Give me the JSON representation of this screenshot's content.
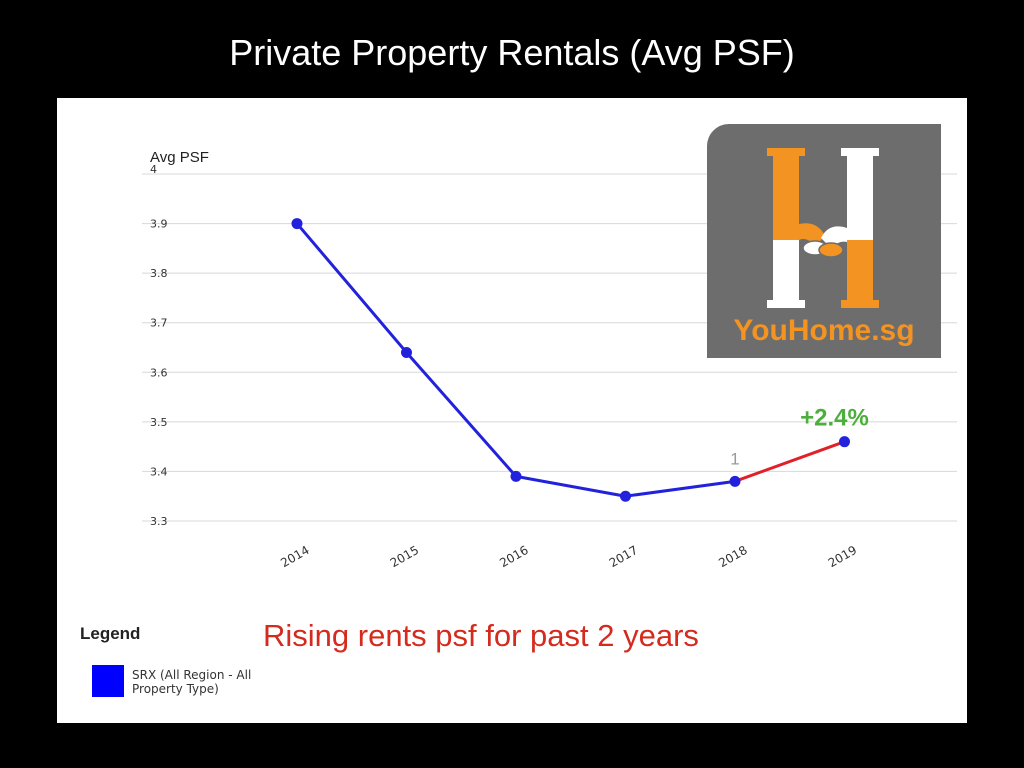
{
  "slide": {
    "title": "Private Property Rentals (Avg PSF)",
    "caption": "Rising rents psf for past 2 years"
  },
  "logo": {
    "text": "YouHome.sg",
    "icon": "handshake-house-icon"
  },
  "legend": {
    "title": "Legend",
    "items": [
      {
        "label": "SRX (All Region - All Property Type)",
        "color": "#0000ff"
      }
    ]
  },
  "chart_data": {
    "type": "line",
    "title": "Private Property Rentals (Avg PSF)",
    "ylabel": "Avg PSF",
    "xlabel": "",
    "categories": [
      "2014",
      "2015",
      "2016",
      "2017",
      "2018",
      "2019"
    ],
    "series": [
      {
        "name": "SRX (All Region - All Property Type)",
        "values": [
          3.9,
          3.64,
          3.39,
          3.35,
          3.38,
          3.46
        ],
        "color": "#2222dd",
        "highlight": {
          "from_index": 4,
          "to_index": 5,
          "color": "#e0202a"
        }
      }
    ],
    "ylim": [
      3.3,
      4.0
    ],
    "yticks": [
      "3.3",
      "3.4",
      "3.5",
      "3.6",
      "3.7",
      "3.8",
      "3.9",
      "4"
    ],
    "grid": true,
    "annotations": [
      {
        "text": "+2.4%",
        "category": "2019",
        "color": "#4caf3c"
      },
      {
        "text": "1",
        "category": "2018",
        "color": "#999999"
      }
    ]
  }
}
